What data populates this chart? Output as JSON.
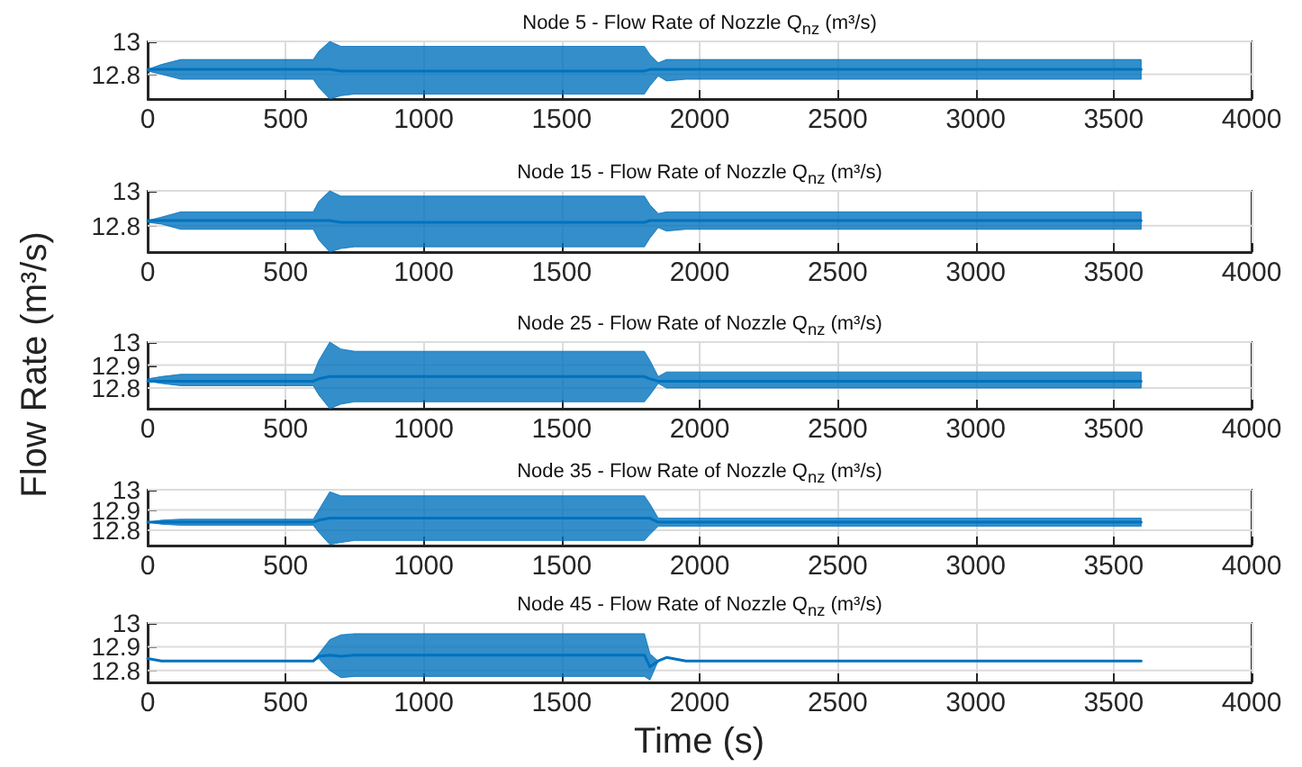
{
  "chart_data": [
    {
      "type": "line",
      "title": "Node 5 - Flow Rate of Nozzle Q$_{nz}$ (m³/s)",
      "x": [
        0,
        50,
        120,
        600,
        620,
        660,
        700,
        750,
        1800,
        1820,
        1850,
        1880,
        1950,
        3600
      ],
      "series": [
        {
          "color": "#0072bd",
          "values": [
            12.83,
            12.83,
            12.83,
            12.83,
            12.83,
            12.83,
            12.82,
            12.82,
            12.82,
            12.83,
            12.83,
            12.83,
            12.83,
            12.83
          ],
          "lower": [
            12.82,
            12.8,
            12.77,
            12.77,
            12.72,
            12.65,
            12.67,
            12.68,
            12.68,
            12.73,
            12.79,
            12.76,
            12.77,
            12.77
          ],
          "upper": [
            12.83,
            12.86,
            12.89,
            12.89,
            12.94,
            13.0,
            12.97,
            12.97,
            12.97,
            12.92,
            12.87,
            12.89,
            12.89,
            12.89
          ]
        }
      ],
      "xlim": [
        0,
        4000
      ],
      "xticks": [
        0,
        500,
        1000,
        1500,
        2000,
        2500,
        3000,
        3500,
        4000
      ],
      "ylim": [
        12.65,
        13
      ],
      "yticks": [
        12.8,
        13
      ],
      "grid": true
    },
    {
      "type": "line",
      "title": "Node 15 - Flow Rate of Nozzle Q$_{nz}$ (m³/s)",
      "x": [
        0,
        50,
        120,
        600,
        620,
        660,
        700,
        750,
        1800,
        1820,
        1850,
        1880,
        1950,
        3600
      ],
      "series": [
        {
          "color": "#0072bd",
          "values": [
            12.83,
            12.83,
            12.83,
            12.83,
            12.83,
            12.83,
            12.82,
            12.82,
            12.82,
            12.83,
            12.83,
            12.83,
            12.83,
            12.83
          ],
          "lower": [
            12.82,
            12.81,
            12.78,
            12.78,
            12.72,
            12.65,
            12.67,
            12.68,
            12.68,
            12.73,
            12.79,
            12.77,
            12.78,
            12.78
          ],
          "upper": [
            12.83,
            12.85,
            12.88,
            12.88,
            12.94,
            13.0,
            12.97,
            12.97,
            12.97,
            12.92,
            12.87,
            12.88,
            12.88,
            12.88
          ]
        }
      ],
      "xlim": [
        0,
        4000
      ],
      "xticks": [
        0,
        500,
        1000,
        1500,
        2000,
        2500,
        3000,
        3500,
        4000
      ],
      "ylim": [
        12.65,
        13
      ],
      "yticks": [
        12.8,
        13
      ],
      "grid": true
    },
    {
      "type": "line",
      "title": "Node 25 - Flow Rate of Nozzle Q$_{nz}$ (m³/s)",
      "ylabel": "Flow Rate (m³/s)",
      "x": [
        0,
        50,
        120,
        600,
        620,
        660,
        700,
        750,
        1800,
        1820,
        1850,
        1880,
        1950,
        3600
      ],
      "series": [
        {
          "color": "#0072bd",
          "values": [
            12.83,
            12.83,
            12.83,
            12.83,
            12.84,
            12.85,
            12.85,
            12.85,
            12.85,
            12.84,
            12.83,
            12.83,
            12.83,
            12.83
          ],
          "lower": [
            12.83,
            12.82,
            12.81,
            12.81,
            12.77,
            12.71,
            12.73,
            12.74,
            12.74,
            12.77,
            12.82,
            12.8,
            12.8,
            12.8
          ],
          "upper": [
            12.84,
            12.85,
            12.86,
            12.86,
            12.92,
            13.0,
            12.97,
            12.96,
            12.96,
            12.92,
            12.85,
            12.87,
            12.87,
            12.87
          ]
        }
      ],
      "xlim": [
        0,
        4000
      ],
      "xticks": [
        0,
        500,
        1000,
        1500,
        2000,
        2500,
        3000,
        3500,
        4000
      ],
      "ylim": [
        12.71,
        13
      ],
      "yticks": [
        12.8,
        12.9,
        13
      ],
      "grid": true
    },
    {
      "type": "line",
      "title": "Node 35 - Flow Rate of Nozzle Q$_{nz}$ (m³/s)",
      "x": [
        0,
        50,
        120,
        600,
        620,
        660,
        700,
        750,
        1800,
        1820,
        1850,
        1880,
        1950,
        3600
      ],
      "series": [
        {
          "color": "#0072bd",
          "values": [
            12.84,
            12.84,
            12.84,
            12.84,
            12.85,
            12.86,
            12.86,
            12.86,
            12.86,
            12.86,
            12.84,
            12.84,
            12.84,
            12.84
          ],
          "lower": [
            12.84,
            12.83,
            12.825,
            12.825,
            12.79,
            12.73,
            12.74,
            12.75,
            12.75,
            12.78,
            12.82,
            12.82,
            12.82,
            12.82
          ],
          "upper": [
            12.84,
            12.85,
            12.855,
            12.855,
            12.9,
            12.99,
            12.97,
            12.97,
            12.97,
            12.93,
            12.86,
            12.86,
            12.86,
            12.86
          ]
        }
      ],
      "xlim": [
        0,
        4000
      ],
      "xticks": [
        0,
        500,
        1000,
        1500,
        2000,
        2500,
        3000,
        3500,
        4000
      ],
      "ylim": [
        12.725,
        13
      ],
      "yticks": [
        12.8,
        12.9,
        13
      ],
      "grid": true
    },
    {
      "type": "line",
      "title": "Node 45 - Flow Rate of Nozzle Q$_{nz}$ (m³/s)",
      "xlabel": "Time (s)",
      "x": [
        0,
        50,
        120,
        600,
        620,
        660,
        700,
        750,
        1800,
        1820,
        1850,
        1880,
        1950,
        3600
      ],
      "series": [
        {
          "color": "#0072bd",
          "values": [
            12.85,
            12.84,
            12.84,
            12.84,
            12.86,
            12.865,
            12.86,
            12.865,
            12.865,
            12.815,
            12.84,
            12.855,
            12.84,
            12.84
          ],
          "lower": [
            12.85,
            12.84,
            12.84,
            12.84,
            12.85,
            12.8,
            12.77,
            12.775,
            12.775,
            12.76,
            12.84,
            12.855,
            12.84,
            12.84
          ],
          "upper": [
            12.85,
            12.84,
            12.84,
            12.84,
            12.87,
            12.93,
            12.95,
            12.955,
            12.955,
            12.87,
            12.84,
            12.855,
            12.84,
            12.84
          ]
        }
      ],
      "xlim": [
        0,
        4000
      ],
      "xticks": [
        0,
        500,
        1000,
        1500,
        2000,
        2500,
        3000,
        3500,
        4000
      ],
      "ylim": [
        12.75,
        13
      ],
      "yticks": [
        12.8,
        12.9,
        13
      ],
      "grid": true
    }
  ]
}
